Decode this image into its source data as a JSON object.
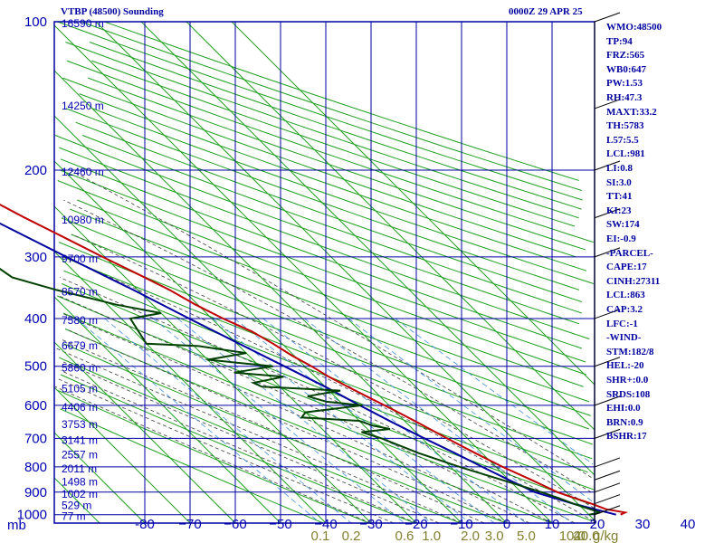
{
  "header": {
    "station": "VTBP (48500) Sounding",
    "time": "0000Z 29 APR 25"
  },
  "indices": [
    "WMO:48500",
    "TP:94",
    "FRZ:565",
    "WB0:647",
    "PW:1.53",
    "RH:47.3",
    "MAXT:33.2",
    "TH:5783",
    "L57:5.5",
    "LCL:981",
    "LI:0.8",
    "SI:3.0",
    "TT:41",
    "KI:23",
    "SW:174",
    "EI:-0.9",
    "-PARCEL-",
    "CAPE:17",
    "CINH:27311",
    "LCL:863",
    "CAP:3.2",
    "LFC:-1",
    "-WIND-",
    "STM:182/8",
    "HEL:-20",
    "SHR+:0.0",
    "SRDS:108",
    "EHI:0.0",
    "BRN:0.9",
    "BSHR:17"
  ],
  "colors": {
    "grid": "#0000a0",
    "isotherm": "#20a020",
    "dry_adiabat": "#20a020",
    "moist_adiabat": "#404040",
    "mixing_ratio": "#4090e0",
    "temperature": "#c00000",
    "dewpoint": "#004000",
    "parcel": "#0000a0"
  },
  "chart_data": {
    "type": "skew-t",
    "pressure_label": "mb",
    "pressure_levels": [
      100,
      200,
      300,
      400,
      500,
      600,
      700,
      800,
      900,
      1000
    ],
    "pressure_labels": [
      "100",
      "200",
      "300",
      "400",
      "500",
      "600",
      "700",
      "800",
      "900",
      "1000"
    ],
    "height_labels": [
      {
        "p": 147,
        "text": "14250 m"
      },
      {
        "p": 200,
        "text": "12460 m"
      },
      {
        "p": 250,
        "text": "10980 m"
      },
      {
        "p": 300,
        "text": "9700 m"
      },
      {
        "p": 350,
        "text": "8570 m"
      },
      {
        "p": 400,
        "text": "7580 m"
      },
      {
        "p": 450,
        "text": "6679 m"
      },
      {
        "p": 500,
        "text": "5860 m"
      },
      {
        "p": 550,
        "text": "5105 m"
      },
      {
        "p": 600,
        "text": "4406 m"
      },
      {
        "p": 650,
        "text": "3753 m"
      },
      {
        "p": 700,
        "text": "3141 m"
      },
      {
        "p": 750,
        "text": "2557 m"
      },
      {
        "p": 800,
        "text": "2011 m"
      },
      {
        "p": 850,
        "text": "1498 m"
      },
      {
        "p": 900,
        "text": "1002 m"
      },
      {
        "p": 950,
        "text": "529 m"
      },
      {
        "p": 1000,
        "text": "77 m"
      }
    ],
    "top_height_label": "16590 m",
    "temperature_ticks": [
      -80,
      -70,
      -60,
      -50,
      -40,
      -30,
      -20,
      -10,
      0,
      10,
      20,
      30,
      40
    ],
    "temperature_tick_labels": [
      "-80",
      "−70",
      "−60",
      "−50",
      "−40",
      "−30",
      "−20",
      "−10",
      "0",
      "10",
      "20",
      "30",
      "40"
    ],
    "mixing_ratio_labels": [
      "0.1",
      "0.2",
      "0.6",
      "1.0",
      "2.0",
      "3.0",
      "5.0",
      "10.0",
      "20.0",
      "40.0"
    ],
    "mixing_ratio_values": [
      0.1,
      0.2,
      0.6,
      1.0,
      2.0,
      3.0,
      5.0,
      10.0,
      20.0,
      40.0
    ],
    "mixing_ratio_unit": "g/kg",
    "temperature": [
      [
        1000,
        27
      ],
      [
        990,
        28.5
      ],
      [
        975,
        25
      ],
      [
        950,
        23
      ],
      [
        925,
        20.5
      ],
      [
        900,
        18
      ],
      [
        850,
        15
      ],
      [
        800,
        11.5
      ],
      [
        750,
        8.5
      ],
      [
        700,
        5.5
      ],
      [
        650,
        2.5
      ],
      [
        620,
        0.5
      ],
      [
        600,
        -1
      ],
      [
        575,
        -3
      ],
      [
        550,
        -5
      ],
      [
        525,
        -7
      ],
      [
        500,
        -8.5
      ],
      [
        475,
        -10.5
      ],
      [
        450,
        -12
      ],
      [
        425,
        -14
      ],
      [
        400,
        -17.5
      ],
      [
        375,
        -20.5
      ],
      [
        350,
        -23
      ],
      [
        325,
        -26.5
      ],
      [
        300,
        -30.5
      ],
      [
        275,
        -34.5
      ],
      [
        250,
        -39
      ],
      [
        225,
        -43.5
      ],
      [
        200,
        -49.5
      ],
      [
        175,
        -55
      ],
      [
        150,
        -62
      ],
      [
        125,
        -70
      ],
      [
        112,
        -76
      ],
      [
        100,
        -79.5
      ]
    ],
    "dewpoint": [
      [
        1000,
        20
      ],
      [
        990,
        23
      ],
      [
        975,
        21.5
      ],
      [
        950,
        19
      ],
      [
        925,
        17
      ],
      [
        900,
        14.5
      ],
      [
        850,
        8.5
      ],
      [
        800,
        2
      ],
      [
        750,
        -4
      ],
      [
        700,
        -9
      ],
      [
        680,
        -12
      ],
      [
        670,
        -5
      ],
      [
        660,
        -8
      ],
      [
        645,
        -10
      ],
      [
        635,
        -22
      ],
      [
        620,
        -20
      ],
      [
        600,
        -6
      ],
      [
        590,
        -13
      ],
      [
        575,
        -16
      ],
      [
        560,
        -7.5
      ],
      [
        550,
        -24
      ],
      [
        540,
        -25
      ],
      [
        525,
        -17
      ],
      [
        515,
        -27
      ],
      [
        500,
        -17
      ],
      [
        485,
        -30
      ],
      [
        470,
        -20
      ],
      [
        455,
        -29
      ],
      [
        450,
        -40
      ],
      [
        400,
        -38
      ],
      [
        390,
        -30
      ],
      [
        375,
        -38
      ],
      [
        350,
        -48
      ],
      [
        330,
        -55
      ],
      [
        300,
        -57
      ],
      [
        250,
        -60
      ],
      [
        200,
        -63
      ],
      [
        175,
        -72
      ],
      [
        150,
        -82
      ],
      [
        125,
        -90
      ],
      [
        100,
        -96
      ]
    ],
    "parcel": [
      [
        1000,
        26
      ],
      [
        950,
        19
      ],
      [
        900,
        13
      ],
      [
        850,
        10
      ],
      [
        800,
        7
      ],
      [
        750,
        4
      ],
      [
        700,
        0.5
      ],
      [
        650,
        -3
      ],
      [
        600,
        -6.5
      ],
      [
        550,
        -10
      ],
      [
        500,
        -14.5
      ],
      [
        450,
        -19.5
      ],
      [
        400,
        -25
      ],
      [
        350,
        -31
      ],
      [
        300,
        -38.5
      ],
      [
        250,
        -47
      ],
      [
        200,
        -57.5
      ],
      [
        175,
        -64
      ],
      [
        150,
        -71
      ],
      [
        125,
        -80
      ],
      [
        100,
        -90
      ]
    ],
    "wind_barbs": [
      [
        1000,
        "",
        ""
      ],
      [
        950,
        "",
        ""
      ],
      [
        900,
        "",
        ""
      ],
      [
        850,
        "",
        ""
      ],
      [
        800,
        "",
        ""
      ],
      [
        700,
        "",
        ""
      ],
      [
        600,
        "",
        ""
      ],
      [
        500,
        "",
        ""
      ],
      [
        400,
        "",
        ""
      ],
      [
        300,
        "",
        ""
      ],
      [
        250,
        "",
        ""
      ],
      [
        200,
        "",
        ""
      ],
      [
        150,
        "",
        ""
      ],
      [
        100,
        "",
        ""
      ]
    ]
  }
}
